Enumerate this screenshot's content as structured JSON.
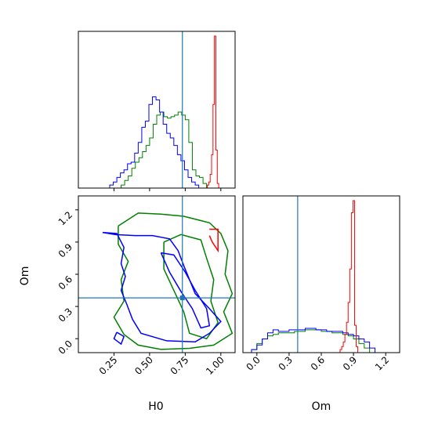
{
  "chart_data": {
    "type": "corner",
    "parameters": [
      "H0",
      "Om"
    ],
    "truth": {
      "H0": 0.73,
      "Om": 0.38
    },
    "line_color": "#1f77b4",
    "xlabel_bottom_left": "H0",
    "ylabel_bottom_left": "Om",
    "xlabel_bottom_right": "Om",
    "H0_axis": {
      "range": [
        0.0,
        1.1
      ],
      "ticks": [
        0.25,
        0.5,
        0.75,
        1.0
      ],
      "tick_labels": [
        "0.25",
        "0.50",
        "0.75",
        "1.00"
      ]
    },
    "Om_axis": {
      "range": [
        -0.13,
        1.33
      ],
      "ticks": [
        0.0,
        0.3,
        0.6,
        0.9,
        1.2
      ],
      "tick_labels": [
        "0.0",
        "0.3",
        "0.6",
        "0.9",
        "1.2"
      ]
    },
    "series": [
      {
        "color": "#ff0000",
        "H0_hist": {
          "edges_start": 0.905,
          "bin_width": 0.01,
          "counts": [
            0.02,
            0.04,
            0.09,
            0.22,
            0.55,
            1.0,
            0.25,
            0.03
          ]
        },
        "Om_hist": {
          "edges_start": 0.76,
          "bin_width": 0.015,
          "counts": [
            0.0,
            0.02,
            0.04,
            0.07,
            0.12,
            0.2,
            0.33,
            0.55,
            0.92,
            1.0,
            0.18,
            0.04
          ]
        },
        "contour": [
          [
            0.92,
            1.02
          ],
          [
            0.98,
            1.02
          ],
          [
            0.98,
            0.82
          ],
          [
            0.94,
            0.9
          ],
          [
            0.92,
            0.96
          ]
        ]
      },
      {
        "color": "#0000ff",
        "H0_hist": {
          "edges_start": 0.22,
          "bin_width": 0.025,
          "counts": [
            0.02,
            0.04,
            0.07,
            0.1,
            0.12,
            0.16,
            0.17,
            0.23,
            0.3,
            0.4,
            0.44,
            0.55,
            0.6,
            0.58,
            0.5,
            0.42,
            0.36,
            0.33,
            0.28,
            0.22,
            0.18,
            0.12,
            0.07,
            0.04,
            0.02
          ]
        },
        "Om_hist": {
          "edges_start": -0.05,
          "bin_width": 0.05,
          "counts": [
            0.02,
            0.05,
            0.09,
            0.13,
            0.15,
            0.14,
            0.14,
            0.15,
            0.15,
            0.15,
            0.16,
            0.16,
            0.15,
            0.15,
            0.14,
            0.14,
            0.14,
            0.13,
            0.12,
            0.11,
            0.09,
            0.07,
            0.03
          ]
        },
        "contours": [
          [
            [
              0.17,
              0.99
            ],
            [
              0.27,
              0.98
            ],
            [
              0.32,
              0.85
            ],
            [
              0.3,
              0.7
            ],
            [
              0.33,
              0.58
            ],
            [
              0.3,
              0.45
            ],
            [
              0.34,
              0.32
            ],
            [
              0.38,
              0.18
            ],
            [
              0.44,
              0.05
            ],
            [
              0.62,
              -0.02
            ],
            [
              0.82,
              -0.03
            ],
            [
              0.92,
              0.05
            ],
            [
              1.0,
              0.16
            ],
            [
              0.92,
              0.28
            ],
            [
              0.82,
              0.42
            ],
            [
              0.78,
              0.55
            ],
            [
              0.74,
              0.68
            ],
            [
              0.7,
              0.82
            ],
            [
              0.64,
              0.93
            ],
            [
              0.52,
              0.96
            ],
            [
              0.4,
              0.96
            ],
            [
              0.26,
              0.97
            ],
            [
              0.17,
              0.99
            ]
          ],
          [
            [
              0.58,
              0.8
            ],
            [
              0.67,
              0.78
            ],
            [
              0.75,
              0.62
            ],
            [
              0.82,
              0.45
            ],
            [
              0.9,
              0.28
            ],
            [
              0.92,
              0.12
            ],
            [
              0.86,
              0.1
            ],
            [
              0.8,
              0.28
            ],
            [
              0.72,
              0.44
            ],
            [
              0.64,
              0.62
            ],
            [
              0.58,
              0.8
            ]
          ],
          [
            [
              0.27,
              0.06
            ],
            [
              0.32,
              0.02
            ],
            [
              0.3,
              -0.05
            ],
            [
              0.25,
              0.0
            ],
            [
              0.27,
              0.06
            ]
          ]
        ]
      },
      {
        "color": "#008000",
        "H0_hist": {
          "edges_start": 0.3,
          "bin_width": 0.025,
          "counts": [
            0.02,
            0.05,
            0.08,
            0.13,
            0.17,
            0.2,
            0.24,
            0.28,
            0.33,
            0.42,
            0.48,
            0.5,
            0.47,
            0.46,
            0.47,
            0.48,
            0.5,
            0.48,
            0.45,
            0.3,
            0.12,
            0.08,
            0.07,
            0.03
          ]
        },
        "Om_hist": {
          "edges_start": -0.05,
          "bin_width": 0.05,
          "counts": [
            0.02,
            0.06,
            0.09,
            0.11,
            0.12,
            0.13,
            0.13,
            0.13,
            0.14,
            0.14,
            0.15,
            0.15,
            0.15,
            0.14,
            0.14,
            0.13,
            0.13,
            0.12,
            0.11,
            0.09,
            0.06,
            0.03
          ]
        },
        "contours": [
          [
            [
              0.28,
              1.05
            ],
            [
              0.42,
              1.17
            ],
            [
              0.58,
              1.16
            ],
            [
              0.74,
              1.14
            ],
            [
              0.92,
              1.08
            ],
            [
              1.0,
              0.98
            ],
            [
              1.05,
              0.82
            ],
            [
              1.03,
              0.6
            ],
            [
              1.08,
              0.42
            ],
            [
              1.02,
              0.25
            ],
            [
              1.08,
              0.05
            ],
            [
              0.95,
              -0.06
            ],
            [
              0.78,
              -0.09
            ],
            [
              0.58,
              -0.1
            ],
            [
              0.42,
              -0.06
            ],
            [
              0.32,
              0.04
            ],
            [
              0.25,
              0.2
            ],
            [
              0.32,
              0.35
            ],
            [
              0.3,
              0.55
            ],
            [
              0.35,
              0.72
            ],
            [
              0.28,
              0.88
            ],
            [
              0.28,
              1.05
            ]
          ],
          [
            [
              0.6,
              0.9
            ],
            [
              0.72,
              0.97
            ],
            [
              0.86,
              0.92
            ],
            [
              0.9,
              0.75
            ],
            [
              0.95,
              0.55
            ],
            [
              0.93,
              0.35
            ],
            [
              0.98,
              0.15
            ],
            [
              0.9,
              0.0
            ],
            [
              0.78,
              0.05
            ],
            [
              0.74,
              0.25
            ],
            [
              0.67,
              0.45
            ],
            [
              0.6,
              0.65
            ],
            [
              0.6,
              0.9
            ]
          ]
        ]
      }
    ]
  }
}
